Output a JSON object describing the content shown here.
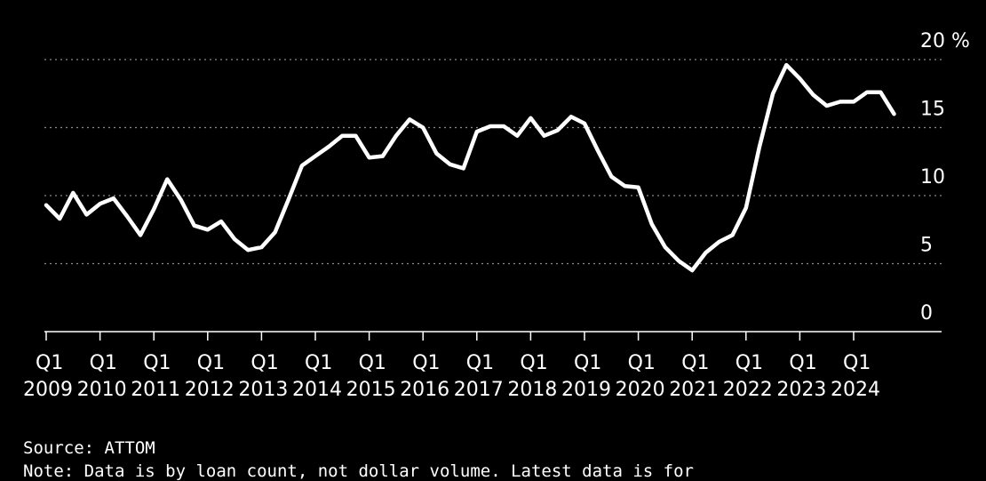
{
  "chart_data": {
    "type": "line",
    "unit": "%",
    "ylim": [
      0,
      20
    ],
    "yticks": [
      0,
      5,
      10,
      15,
      20
    ],
    "grid": true,
    "x_tick_labels": [
      {
        "q": "Q1",
        "year": "2009"
      },
      {
        "q": "Q1",
        "year": "2010"
      },
      {
        "q": "Q1",
        "year": "2011"
      },
      {
        "q": "Q1",
        "year": "2012"
      },
      {
        "q": "Q1",
        "year": "2013"
      },
      {
        "q": "Q1",
        "year": "2014"
      },
      {
        "q": "Q1",
        "year": "2015"
      },
      {
        "q": "Q1",
        "year": "2016"
      },
      {
        "q": "Q1",
        "year": "2017"
      },
      {
        "q": "Q1",
        "year": "2018"
      },
      {
        "q": "Q1",
        "year": "2019"
      },
      {
        "q": "Q1",
        "year": "2020"
      },
      {
        "q": "Q1",
        "year": "2021"
      },
      {
        "q": "Q1",
        "year": "2022"
      },
      {
        "q": "Q1",
        "year": "2023"
      },
      {
        "q": "Q1",
        "year": "2024"
      }
    ],
    "x_start": "2009 Q1",
    "series": [
      {
        "color": "#ffffff",
        "values": [
          9.3,
          8.3,
          10.2,
          8.6,
          9.4,
          9.8,
          8.5,
          7.1,
          9.0,
          11.2,
          9.7,
          7.8,
          7.5,
          8.1,
          6.8,
          6.0,
          6.2,
          7.3,
          9.7,
          12.2,
          12.9,
          13.6,
          14.4,
          14.4,
          12.8,
          12.9,
          14.4,
          15.6,
          15.0,
          13.1,
          12.3,
          12.0,
          14.7,
          15.1,
          15.1,
          14.4,
          15.7,
          14.4,
          14.8,
          15.8,
          15.3,
          13.3,
          11.4,
          10.7,
          10.6,
          7.9,
          6.2,
          5.2,
          4.5,
          5.8,
          6.6,
          7.1,
          9.1,
          13.6,
          17.5,
          19.6,
          18.6,
          17.4,
          16.6,
          16.9,
          16.9,
          17.6,
          17.6,
          16.0
        ]
      }
    ]
  },
  "footer": {
    "source": "Source: ATTOM",
    "note": "Note: Data is by loan count, not dollar volume. Latest data is for"
  }
}
